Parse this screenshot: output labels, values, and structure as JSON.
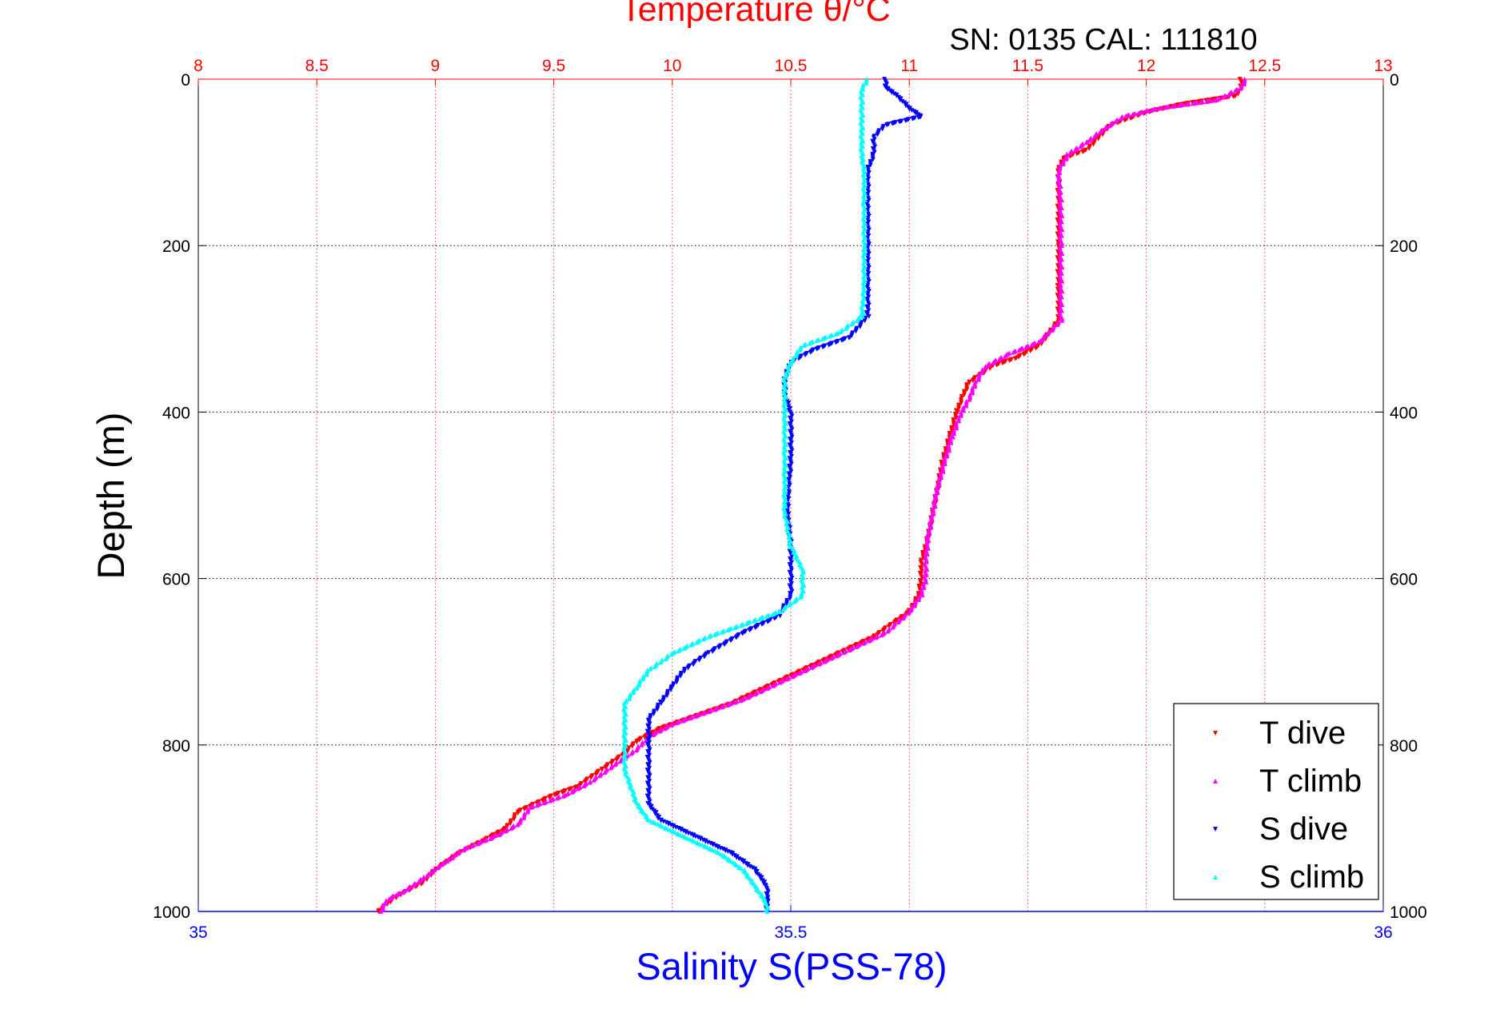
{
  "chart_data": {
    "type": "scatter",
    "title": "Temperature θ/°C",
    "subtitle": "SN: 0135  CAL: 111810",
    "xlabel": "Salinity S(PSS-78)",
    "ylabel": "Depth (m)",
    "x_bottom": {
      "label": "Salinity S(PSS-78)",
      "range": [
        35,
        36
      ],
      "ticks": [
        "35",
        "35.5",
        "36"
      ],
      "color": "#0000ff"
    },
    "x_top": {
      "label": "Temperature θ/°C",
      "range": [
        8,
        13
      ],
      "ticks": [
        "8",
        "8.5",
        "9",
        "9.5",
        "10",
        "10.5",
        "11",
        "11.5",
        "12",
        "12.5",
        "13"
      ],
      "color": "#ff0000"
    },
    "y": {
      "range": [
        0,
        1000
      ],
      "reversed": true,
      "ticks": [
        "0",
        "200",
        "400",
        "600",
        "800",
        "1000"
      ]
    },
    "grid": true,
    "legend_position": "bottom-right",
    "series": [
      {
        "name": "T dive",
        "axis": "temperature",
        "color": "#ff0000",
        "marker": "triangle-down",
        "points": [
          [
            12.4,
            0
          ],
          [
            12.4,
            10
          ],
          [
            12.38,
            20
          ],
          [
            12.15,
            30
          ],
          [
            12.0,
            40
          ],
          [
            11.85,
            55
          ],
          [
            11.8,
            70
          ],
          [
            11.75,
            85
          ],
          [
            11.65,
            95
          ],
          [
            11.63,
            110
          ],
          [
            11.63,
            150
          ],
          [
            11.63,
            200
          ],
          [
            11.63,
            250
          ],
          [
            11.63,
            290
          ],
          [
            11.55,
            320
          ],
          [
            11.45,
            335
          ],
          [
            11.35,
            345
          ],
          [
            11.25,
            365
          ],
          [
            11.22,
            385
          ],
          [
            11.2,
            400
          ],
          [
            11.17,
            430
          ],
          [
            11.14,
            460
          ],
          [
            11.12,
            490
          ],
          [
            11.1,
            520
          ],
          [
            11.08,
            550
          ],
          [
            11.05,
            580
          ],
          [
            11.05,
            600
          ],
          [
            11.04,
            620
          ],
          [
            11.0,
            640
          ],
          [
            10.85,
            670
          ],
          [
            10.7,
            690
          ],
          [
            10.55,
            710
          ],
          [
            10.4,
            730
          ],
          [
            10.25,
            750
          ],
          [
            10.1,
            765
          ],
          [
            9.95,
            780
          ],
          [
            9.85,
            795
          ],
          [
            9.8,
            810
          ],
          [
            9.7,
            830
          ],
          [
            9.6,
            850
          ],
          [
            9.5,
            860
          ],
          [
            9.35,
            880
          ],
          [
            9.3,
            900
          ],
          [
            9.2,
            915
          ],
          [
            9.1,
            930
          ],
          [
            9.0,
            950
          ],
          [
            8.95,
            965
          ],
          [
            8.85,
            980
          ],
          [
            8.8,
            990
          ],
          [
            8.76,
            1000
          ]
        ]
      },
      {
        "name": "T climb",
        "axis": "temperature",
        "color": "#ff00ff",
        "marker": "triangle-up",
        "points": [
          [
            12.42,
            0
          ],
          [
            12.4,
            10
          ],
          [
            12.3,
            25
          ],
          [
            12.05,
            35
          ],
          [
            11.9,
            45
          ],
          [
            11.82,
            60
          ],
          [
            11.75,
            75
          ],
          [
            11.67,
            90
          ],
          [
            11.63,
            110
          ],
          [
            11.64,
            150
          ],
          [
            11.64,
            200
          ],
          [
            11.64,
            250
          ],
          [
            11.64,
            290
          ],
          [
            11.55,
            315
          ],
          [
            11.42,
            330
          ],
          [
            11.32,
            345
          ],
          [
            11.28,
            365
          ],
          [
            11.25,
            385
          ],
          [
            11.22,
            400
          ],
          [
            11.18,
            430
          ],
          [
            11.15,
            460
          ],
          [
            11.12,
            490
          ],
          [
            11.1,
            520
          ],
          [
            11.08,
            550
          ],
          [
            11.07,
            580
          ],
          [
            11.07,
            600
          ],
          [
            11.05,
            620
          ],
          [
            11.0,
            640
          ],
          [
            10.9,
            665
          ],
          [
            10.75,
            685
          ],
          [
            10.6,
            705
          ],
          [
            10.45,
            725
          ],
          [
            10.3,
            745
          ],
          [
            10.15,
            760
          ],
          [
            10.0,
            775
          ],
          [
            9.9,
            790
          ],
          [
            9.85,
            805
          ],
          [
            9.75,
            825
          ],
          [
            9.65,
            845
          ],
          [
            9.55,
            860
          ],
          [
            9.4,
            875
          ],
          [
            9.35,
            895
          ],
          [
            9.25,
            910
          ],
          [
            9.12,
            925
          ],
          [
            9.02,
            945
          ],
          [
            8.95,
            960
          ],
          [
            8.87,
            975
          ],
          [
            8.8,
            985
          ],
          [
            8.77,
            1000
          ]
        ]
      },
      {
        "name": "S dive",
        "axis": "salinity",
        "color": "#0000ff",
        "marker": "triangle-down",
        "points": [
          [
            35.58,
            0
          ],
          [
            35.58,
            10
          ],
          [
            35.59,
            20
          ],
          [
            35.6,
            35
          ],
          [
            35.61,
            45
          ],
          [
            35.58,
            55
          ],
          [
            35.57,
            70
          ],
          [
            35.57,
            90
          ],
          [
            35.565,
            110
          ],
          [
            35.565,
            150
          ],
          [
            35.565,
            200
          ],
          [
            35.565,
            250
          ],
          [
            35.565,
            285
          ],
          [
            35.55,
            310
          ],
          [
            35.52,
            325
          ],
          [
            35.5,
            340
          ],
          [
            35.495,
            360
          ],
          [
            35.495,
            380
          ],
          [
            35.5,
            400
          ],
          [
            35.5,
            430
          ],
          [
            35.5,
            460
          ],
          [
            35.498,
            490
          ],
          [
            35.497,
            520
          ],
          [
            35.5,
            560
          ],
          [
            35.5,
            590
          ],
          [
            35.5,
            620
          ],
          [
            35.49,
            645
          ],
          [
            35.46,
            665
          ],
          [
            35.43,
            690
          ],
          [
            35.41,
            710
          ],
          [
            35.4,
            730
          ],
          [
            35.39,
            750
          ],
          [
            35.38,
            770
          ],
          [
            35.38,
            790
          ],
          [
            35.38,
            810
          ],
          [
            35.38,
            830
          ],
          [
            35.38,
            850
          ],
          [
            35.38,
            870
          ],
          [
            35.39,
            890
          ],
          [
            35.42,
            910
          ],
          [
            35.45,
            930
          ],
          [
            35.47,
            950
          ],
          [
            35.48,
            970
          ],
          [
            35.48,
            985
          ],
          [
            35.48,
            1000
          ]
        ]
      },
      {
        "name": "S climb",
        "axis": "salinity",
        "color": "#00ffff",
        "marker": "triangle-up",
        "points": [
          [
            35.565,
            0
          ],
          [
            35.56,
            10
          ],
          [
            35.56,
            30
          ],
          [
            35.56,
            50
          ],
          [
            35.56,
            70
          ],
          [
            35.56,
            90
          ],
          [
            35.562,
            110
          ],
          [
            35.562,
            150
          ],
          [
            35.562,
            200
          ],
          [
            35.562,
            250
          ],
          [
            35.56,
            285
          ],
          [
            35.54,
            305
          ],
          [
            35.51,
            320
          ],
          [
            35.5,
            340
          ],
          [
            35.495,
            360
          ],
          [
            35.495,
            380
          ],
          [
            35.495,
            400
          ],
          [
            35.495,
            430
          ],
          [
            35.495,
            460
          ],
          [
            35.495,
            490
          ],
          [
            35.495,
            520
          ],
          [
            35.5,
            560
          ],
          [
            35.51,
            590
          ],
          [
            35.51,
            620
          ],
          [
            35.49,
            640
          ],
          [
            35.46,
            655
          ],
          [
            35.43,
            670
          ],
          [
            35.4,
            690
          ],
          [
            35.38,
            710
          ],
          [
            35.37,
            730
          ],
          [
            35.36,
            750
          ],
          [
            35.36,
            770
          ],
          [
            35.36,
            790
          ],
          [
            35.36,
            810
          ],
          [
            35.36,
            830
          ],
          [
            35.365,
            850
          ],
          [
            35.37,
            870
          ],
          [
            35.38,
            890
          ],
          [
            35.41,
            910
          ],
          [
            35.44,
            930
          ],
          [
            35.46,
            950
          ],
          [
            35.47,
            970
          ],
          [
            35.48,
            990
          ],
          [
            35.48,
            1000
          ]
        ]
      }
    ]
  }
}
